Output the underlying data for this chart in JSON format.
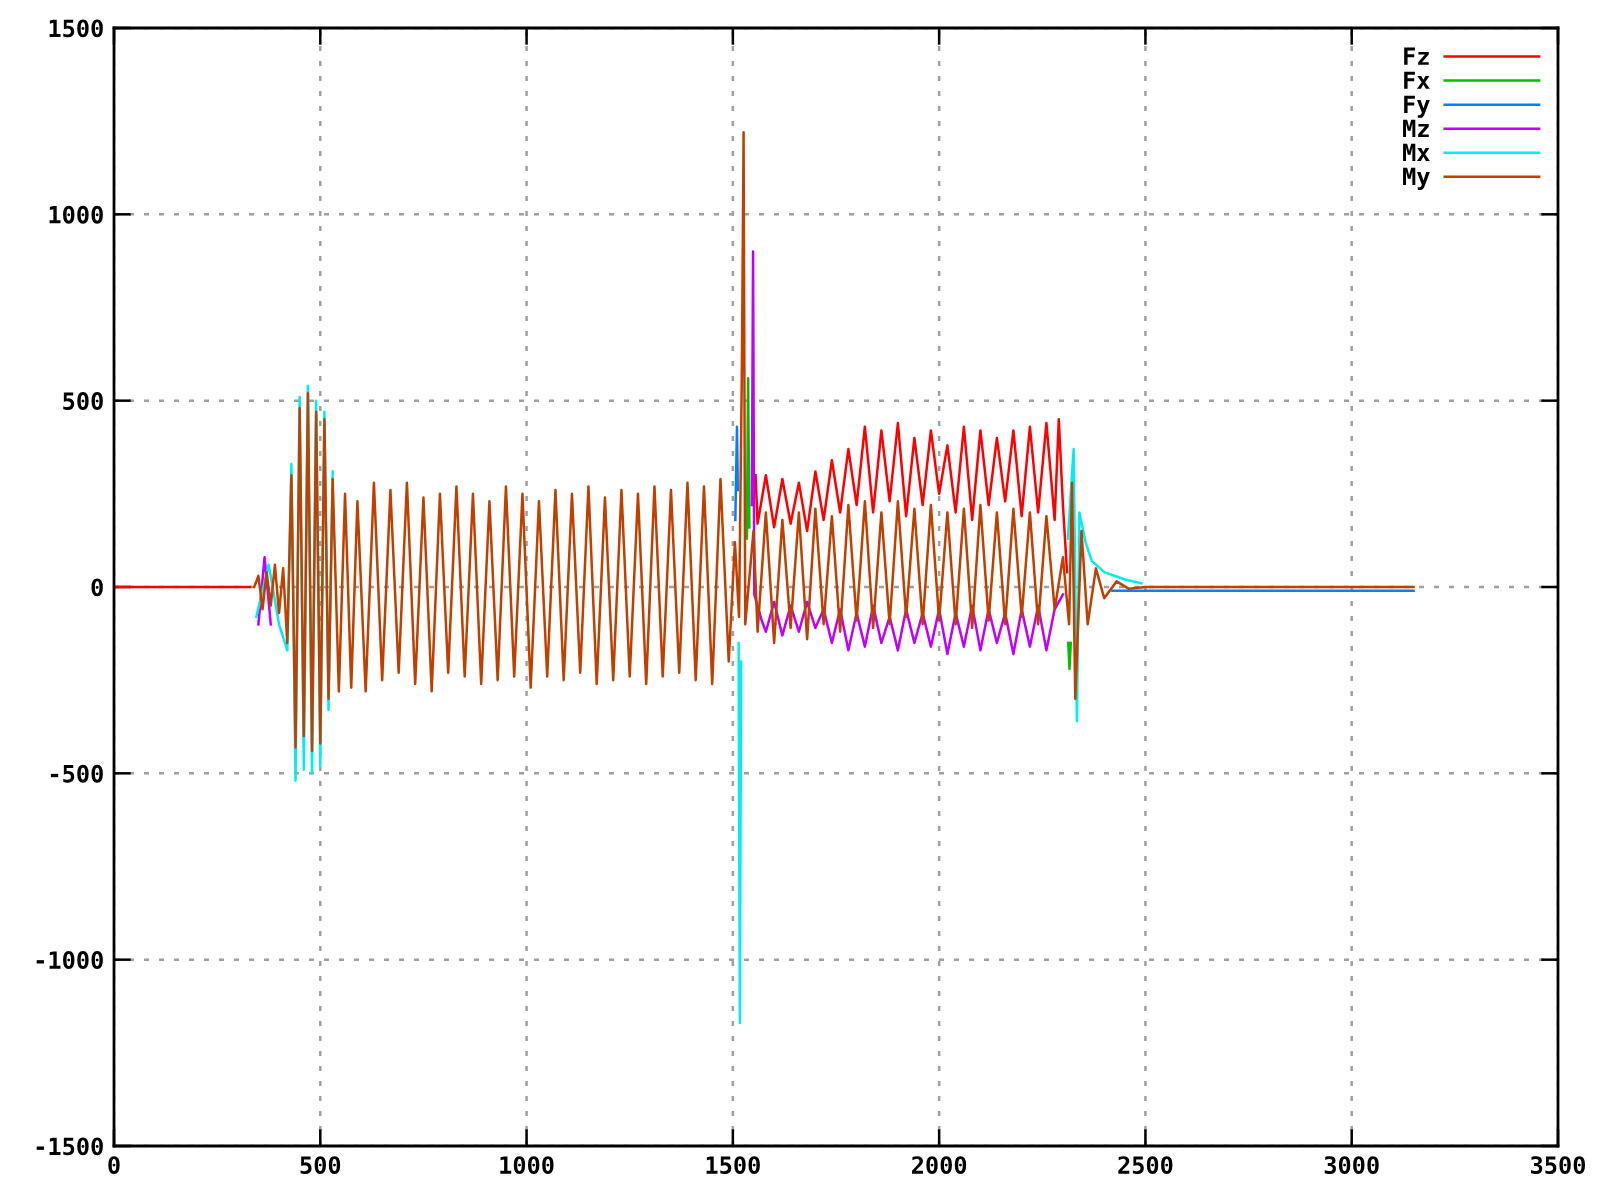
{
  "chart_data": {
    "type": "line",
    "xlim": [
      0,
      3500
    ],
    "ylim": [
      -1500,
      1500
    ],
    "xticks": [
      0,
      500,
      1000,
      1500,
      2000,
      2500,
      3000,
      3500
    ],
    "yticks": [
      -1500,
      -1000,
      -500,
      0,
      500,
      1000,
      1500
    ],
    "grid": true,
    "legend": "top right",
    "series": [
      {
        "name": "Fz",
        "color": "#ff0000",
        "x": [
          0,
          330,
          1000,
          1555,
          1560,
          1580,
          1600,
          1620,
          1640,
          1660,
          1680,
          1700,
          1720,
          1740,
          1760,
          1780,
          1800,
          1820,
          1840,
          1860,
          1880,
          1900,
          1920,
          1940,
          1960,
          1980,
          2000,
          2020,
          2040,
          2060,
          2080,
          2100,
          2120,
          2140,
          2160,
          2180,
          2200,
          2220,
          2240,
          2260,
          2280,
          2290,
          2300,
          2310
        ],
        "values": [
          0,
          0,
          null,
          300,
          170,
          300,
          160,
          290,
          170,
          280,
          150,
          310,
          180,
          340,
          200,
          370,
          220,
          430,
          200,
          420,
          230,
          440,
          190,
          400,
          220,
          420,
          250,
          380,
          200,
          430,
          180,
          420,
          220,
          400,
          230,
          420,
          190,
          430,
          200,
          440,
          180,
          450,
          220,
          40
        ]
      },
      {
        "name": "Fx",
        "color": "#00c000",
        "x": [
          1534,
          1537,
          1540,
          2000,
          2313,
          2316,
          2319
        ],
        "values": [
          130,
          560,
          160,
          null,
          -150,
          -220,
          -150
        ]
      },
      {
        "name": "Fy",
        "color": "#0080ff",
        "x": [
          1506,
          1510,
          1512,
          2000,
          2420,
          3150
        ],
        "values": [
          180,
          430,
          260,
          null,
          -10,
          -10
        ]
      },
      {
        "name": "Mz",
        "color": "#c000ff",
        "x": [
          350,
          365,
          380,
          1000,
          1546,
          1549,
          1552,
          1570,
          1580,
          1600,
          1620,
          1640,
          1660,
          1680,
          1700,
          1720,
          1740,
          1760,
          1780,
          1800,
          1820,
          1840,
          1860,
          1880,
          1900,
          1920,
          1940,
          1960,
          1980,
          2000,
          2020,
          2040,
          2060,
          2080,
          2100,
          2120,
          2140,
          2160,
          2180,
          2200,
          2220,
          2240,
          2260,
          2280,
          2300
        ],
        "values": [
          -100,
          80,
          -100,
          null,
          220,
          900,
          -20,
          -90,
          -120,
          -40,
          -130,
          -50,
          -120,
          -40,
          -110,
          -60,
          -150,
          -60,
          -170,
          -70,
          -160,
          -50,
          -150,
          -80,
          -170,
          -60,
          -150,
          -70,
          -160,
          -60,
          -180,
          -70,
          -160,
          -50,
          -170,
          -60,
          -150,
          -70,
          -180,
          -60,
          -160,
          -50,
          -170,
          -60,
          -20
        ]
      },
      {
        "name": "Mx",
        "color": "#00eeee",
        "x": [
          345,
          375,
          400,
          420,
          430,
          440,
          450,
          460,
          470,
          480,
          490,
          500,
          510,
          520,
          530,
          1000,
          1514,
          1517,
          1520,
          2000,
          2312,
          2326,
          2334,
          2340,
          2355,
          2370,
          2400,
          2450,
          2490
        ],
        "values": [
          -80,
          60,
          -100,
          -170,
          330,
          -520,
          510,
          -490,
          540,
          -500,
          500,
          -480,
          470,
          -330,
          310,
          null,
          -150,
          -1170,
          -200,
          null,
          130,
          370,
          -360,
          200,
          120,
          70,
          40,
          20,
          10
        ]
      },
      {
        "name": "My",
        "color": "#c04000",
        "x": [
          340,
          350,
          360,
          370,
          380,
          390,
          400,
          410,
          420,
          430,
          440,
          450,
          460,
          470,
          480,
          490,
          500,
          510,
          520,
          530,
          545,
          560,
          575,
          590,
          610,
          630,
          650,
          670,
          690,
          710,
          730,
          750,
          770,
          790,
          810,
          830,
          850,
          870,
          890,
          910,
          930,
          950,
          970,
          990,
          1010,
          1030,
          1050,
          1070,
          1090,
          1110,
          1130,
          1150,
          1170,
          1190,
          1210,
          1230,
          1250,
          1270,
          1290,
          1310,
          1330,
          1350,
          1370,
          1390,
          1410,
          1430,
          1450,
          1470,
          1490,
          1505,
          1515,
          1522,
          1526,
          1530,
          1550,
          1560,
          1580,
          1600,
          1620,
          1640,
          1660,
          1680,
          1700,
          1720,
          1740,
          1760,
          1780,
          1800,
          1820,
          1840,
          1860,
          1880,
          1900,
          1920,
          1940,
          1960,
          1980,
          2000,
          2020,
          2040,
          2060,
          2080,
          2100,
          2120,
          2140,
          2160,
          2180,
          2200,
          2220,
          2240,
          2260,
          2280,
          2300,
          2315,
          2322,
          2330,
          2345,
          2360,
          2380,
          2400,
          2430,
          2460,
          2500,
          3150
        ],
        "values": [
          0,
          30,
          -60,
          40,
          -50,
          60,
          -70,
          50,
          -150,
          300,
          -430,
          480,
          -400,
          520,
          -440,
          470,
          -420,
          450,
          -300,
          290,
          -280,
          250,
          -270,
          230,
          -280,
          280,
          -250,
          260,
          -230,
          280,
          -260,
          240,
          -280,
          250,
          -230,
          270,
          -240,
          250,
          -260,
          230,
          -250,
          270,
          -240,
          250,
          -270,
          230,
          -240,
          260,
          -250,
          250,
          -230,
          270,
          -260,
          240,
          -250,
          260,
          -240,
          250,
          -260,
          270,
          -240,
          260,
          -230,
          280,
          -250,
          270,
          -260,
          290,
          -200,
          120,
          -80,
          600,
          1220,
          -100,
          150,
          -120,
          200,
          -150,
          180,
          -110,
          200,
          -140,
          210,
          -100,
          190,
          -120,
          220,
          -90,
          230,
          -110,
          200,
          -100,
          230,
          -80,
          210,
          -100,
          220,
          -90,
          200,
          -100,
          210,
          -110,
          220,
          -90,
          200,
          -100,
          210,
          -80,
          200,
          -100,
          190,
          -60,
          80,
          -100,
          280,
          -300,
          150,
          -100,
          50,
          -30,
          15,
          -5,
          0,
          0
        ]
      }
    ]
  }
}
